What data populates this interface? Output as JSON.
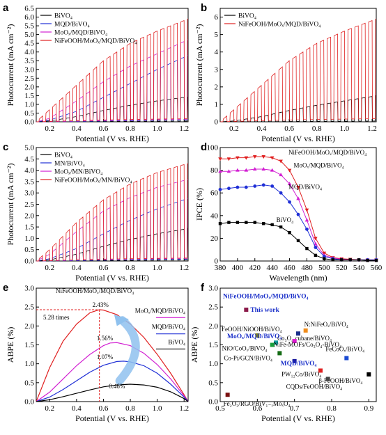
{
  "chart_data": [
    {
      "panel": "a",
      "type": "line",
      "xlabel": "Potential (V vs. RHE)",
      "ylabel": "Photocurrent (mA cm⁻²)",
      "xlim": [
        0.1,
        1.23
      ],
      "ylim": [
        0,
        6.5
      ],
      "xticks": [
        "0.2",
        "0.4",
        "0.6",
        "0.8",
        "1.0",
        "1.2"
      ],
      "yticks": [
        "0.0",
        "0.5",
        "1.0",
        "1.5",
        "2.0",
        "2.5",
        "3.0",
        "3.5",
        "4.0",
        "4.5",
        "5.0",
        "5.5",
        "6.0",
        "6.5"
      ],
      "chopped": true,
      "legend_position": "top-left",
      "series": [
        {
          "name": "BiVO₄",
          "color": "#000000",
          "x": [
            0.1,
            0.2,
            0.4,
            0.6,
            0.8,
            1.0,
            1.2,
            1.23
          ],
          "y": [
            0,
            0.05,
            0.3,
            0.65,
            0.95,
            1.2,
            1.4,
            1.42
          ]
        },
        {
          "name": "MQD/BiVO₄",
          "color": "#1f2fd6",
          "x": [
            0.1,
            0.2,
            0.4,
            0.6,
            0.8,
            1.0,
            1.2,
            1.23
          ],
          "y": [
            0,
            0.1,
            0.6,
            1.4,
            2.2,
            3.0,
            3.7,
            3.8
          ]
        },
        {
          "name": "MoOₓ/MQD/BiVO₄",
          "color": "#d21fd2",
          "x": [
            0.1,
            0.2,
            0.4,
            0.6,
            0.8,
            1.0,
            1.2,
            1.23
          ],
          "y": [
            0,
            0.2,
            1.2,
            2.3,
            3.2,
            3.9,
            4.6,
            4.7
          ]
        },
        {
          "name": "NiFeOOH/MoOₓ/MQD/BiVO₄",
          "color": "#e02020",
          "x": [
            0.1,
            0.2,
            0.4,
            0.6,
            0.8,
            1.0,
            1.2,
            1.23
          ],
          "y": [
            0,
            0.7,
            2.1,
            3.5,
            4.5,
            5.2,
            5.8,
            5.9
          ]
        }
      ]
    },
    {
      "panel": "b",
      "type": "line",
      "xlabel": "Potential (V vs. RHE)",
      "ylabel": "Photocurrent (mA cm⁻²)",
      "xlim": [
        0.1,
        1.23
      ],
      "ylim": [
        0,
        6.5
      ],
      "xticks": [
        "0.2",
        "0.4",
        "0.6",
        "0.8",
        "1.0",
        "1.2"
      ],
      "yticks": [
        "0",
        "1",
        "2",
        "3",
        "4",
        "5",
        "6"
      ],
      "chopped": true,
      "legend_position": "top-left",
      "series": [
        {
          "name": "BiVO₄",
          "color": "#000000",
          "x": [
            0.1,
            0.2,
            0.4,
            0.6,
            0.8,
            1.0,
            1.2,
            1.23
          ],
          "y": [
            0,
            0.05,
            0.3,
            0.65,
            0.95,
            1.2,
            1.45,
            1.5
          ]
        },
        {
          "name": "NiFeOOH/MoOₓ/MQD/BiVO₄",
          "color": "#e02020",
          "x": [
            0.1,
            0.2,
            0.4,
            0.6,
            0.8,
            1.0,
            1.2,
            1.23
          ],
          "y": [
            0,
            0.7,
            2.1,
            3.5,
            4.5,
            5.2,
            5.8,
            5.9
          ]
        }
      ]
    },
    {
      "panel": "c",
      "type": "line",
      "xlabel": "Potential (V vs. RHE)",
      "ylabel": "Photocurrent (mA cm⁻²)",
      "xlim": [
        0.1,
        1.23
      ],
      "ylim": [
        0,
        5.0
      ],
      "xticks": [
        "0.2",
        "0.4",
        "0.6",
        "0.8",
        "1.0",
        "1.2"
      ],
      "yticks": [
        "0.0",
        "0.5",
        "1.0",
        "1.5",
        "2.0",
        "2.5",
        "3.0",
        "3.5",
        "4.0",
        "4.5",
        "5.0"
      ],
      "chopped": true,
      "legend_position": "top-left",
      "series": [
        {
          "name": "BiVO₄",
          "color": "#000000",
          "x": [
            0.1,
            0.2,
            0.4,
            0.6,
            0.8,
            1.0,
            1.2,
            1.23
          ],
          "y": [
            0,
            0.05,
            0.3,
            0.65,
            0.95,
            1.2,
            1.4,
            1.45
          ]
        },
        {
          "name": "MN/BiVO₄",
          "color": "#1f2fd6",
          "x": [
            0.1,
            0.2,
            0.4,
            0.6,
            0.8,
            1.0,
            1.2,
            1.23
          ],
          "y": [
            0,
            0.1,
            0.55,
            1.2,
            1.8,
            2.3,
            2.7,
            2.75
          ]
        },
        {
          "name": "MoOₓ/MN/BiVO₄",
          "color": "#d21fd2",
          "x": [
            0.1,
            0.2,
            0.4,
            0.6,
            0.8,
            1.0,
            1.2,
            1.23
          ],
          "y": [
            0,
            0.3,
            1.3,
            2.2,
            2.8,
            3.25,
            3.55,
            3.6
          ]
        },
        {
          "name": "NiFeOOH/MoOₓ/MN/BiVO₄",
          "color": "#e02020",
          "x": [
            0.1,
            0.2,
            0.4,
            0.6,
            0.8,
            1.0,
            1.2,
            1.23
          ],
          "y": [
            0,
            0.5,
            1.7,
            2.7,
            3.4,
            3.9,
            4.25,
            4.3
          ]
        }
      ]
    },
    {
      "panel": "d",
      "type": "line",
      "xlabel": "Wavelength (nm)",
      "ylabel": "IPCE (%)",
      "xlim": [
        380,
        560
      ],
      "ylim": [
        0,
        100
      ],
      "xticks": [
        "380",
        "400",
        "420",
        "440",
        "460",
        "480",
        "500",
        "520",
        "540",
        "560"
      ],
      "yticks": [
        "0",
        "20",
        "40",
        "60",
        "80",
        "100"
      ],
      "x": [
        380,
        390,
        400,
        410,
        420,
        430,
        440,
        450,
        460,
        470,
        480,
        490,
        500,
        510,
        520,
        530,
        540,
        550,
        560
      ],
      "series": [
        {
          "name": "NiFeOOH/MoOₓ/MQD/BiVO₄",
          "color": "#e02020",
          "marker": "triangle-down",
          "y": [
            90,
            90,
            91,
            91,
            92,
            92,
            91,
            88,
            80,
            65,
            45,
            20,
            7,
            3,
            2,
            1.5,
            1,
            1,
            1
          ]
        },
        {
          "name": "MoOₓ/MQD/BiVO₄",
          "color": "#d21fd2",
          "marker": "triangle-up",
          "y": [
            79,
            79,
            80,
            80,
            81,
            81,
            80,
            76,
            68,
            55,
            36,
            15,
            5,
            2.5,
            1.5,
            1,
            1,
            1,
            1
          ]
        },
        {
          "name": "MQD/BiVO₄",
          "color": "#1f2fd6",
          "marker": "circle",
          "y": [
            63,
            64,
            65,
            65,
            66,
            67,
            66,
            60,
            52,
            41,
            28,
            12,
            4,
            2,
            1,
            1,
            1,
            1,
            1
          ]
        },
        {
          "name": "BiVO₄",
          "color": "#000000",
          "marker": "square",
          "y": [
            33,
            34,
            34,
            34,
            34,
            33,
            32,
            30,
            25,
            18,
            11,
            5,
            2,
            1,
            1,
            1,
            1,
            0.5,
            0.5
          ]
        }
      ]
    },
    {
      "panel": "e",
      "type": "line",
      "xlabel": "Potential (V vs. RHE)",
      "ylabel": "ABPE (%)",
      "xlim": [
        0.1,
        1.23
      ],
      "ylim": [
        0,
        3.0
      ],
      "xticks": [
        "0.2",
        "0.4",
        "0.6",
        "0.8",
        "1.0",
        "1.2"
      ],
      "yticks": [
        "0.0",
        "0.5",
        "1.0",
        "1.5",
        "2.0",
        "2.5",
        "3.0"
      ],
      "annotations": {
        "top_label": "NiFeOOH/MoOₓ/MQD/BiVO₄",
        "peak": "2.43%",
        "times": "5.28 times",
        "moox": "1.56%",
        "mqd": "1.07%",
        "bivo": "0.46%",
        "peak_x": 0.57,
        "peak_y": 2.43
      },
      "series": [
        {
          "name": "NiFeOOH/MoOₓ/MQD/BiVO₄",
          "color": "#e02020",
          "x": [
            0.1,
            0.2,
            0.3,
            0.4,
            0.5,
            0.57,
            0.6,
            0.7,
            0.8,
            0.9,
            1.0,
            1.1,
            1.2,
            1.23
          ],
          "y": [
            0,
            0.9,
            1.6,
            2.05,
            2.35,
            2.43,
            2.42,
            2.3,
            2.05,
            1.7,
            1.25,
            0.75,
            0.18,
            0
          ]
        },
        {
          "name": "MoOₓ/MQD/BiVO₄",
          "color": "#d21fd2",
          "x": [
            0.1,
            0.2,
            0.3,
            0.4,
            0.5,
            0.6,
            0.65,
            0.7,
            0.8,
            0.9,
            1.0,
            1.1,
            1.2,
            1.23
          ],
          "y": [
            0,
            0.25,
            0.6,
            0.95,
            1.25,
            1.48,
            1.55,
            1.56,
            1.48,
            1.28,
            0.98,
            0.6,
            0.15,
            0
          ]
        },
        {
          "name": "MQD/BiVO₄",
          "color": "#1f2fd6",
          "x": [
            0.1,
            0.2,
            0.3,
            0.4,
            0.5,
            0.6,
            0.7,
            0.75,
            0.8,
            0.9,
            1.0,
            1.1,
            1.2,
            1.23
          ],
          "y": [
            0,
            0.12,
            0.32,
            0.55,
            0.78,
            0.96,
            1.06,
            1.07,
            1.05,
            0.95,
            0.75,
            0.46,
            0.12,
            0
          ]
        },
        {
          "name": "BiVO₄",
          "color": "#000000",
          "x": [
            0.1,
            0.2,
            0.3,
            0.4,
            0.5,
            0.6,
            0.7,
            0.8,
            0.9,
            1.0,
            1.1,
            1.2,
            1.23
          ],
          "y": [
            0,
            0.05,
            0.13,
            0.22,
            0.31,
            0.39,
            0.44,
            0.46,
            0.44,
            0.38,
            0.26,
            0.08,
            0
          ]
        }
      ]
    },
    {
      "panel": "f",
      "type": "scatter",
      "xlabel": "Potential (V vs. RHE)",
      "ylabel": "ABPE (%)",
      "xlim": [
        0.5,
        0.92
      ],
      "ylim": [
        0,
        3.0
      ],
      "xticks": [
        "0.5",
        "0.6",
        "0.7",
        "0.8",
        "0.9"
      ],
      "yticks": [
        "0.0",
        "0.5",
        "1.0",
        "1.5",
        "2.0",
        "2.5",
        "3.0"
      ],
      "points": [
        {
          "label": "NiFeOOH/MoOₓ/MQD/BiVO₄",
          "note": "This work",
          "x": 0.57,
          "y": 2.43,
          "color": "#8b1a4a",
          "highlight": true
        },
        {
          "label": "FeOOH/NiOOH/BiVO₄",
          "x": 0.6,
          "y": 1.75,
          "color": "#8b8b00"
        },
        {
          "label": "N:NiFeOₓ/BiVO₄",
          "x": 0.73,
          "y": 1.88,
          "color": "#f08c1a"
        },
        {
          "label": "Co₃O₄ cubane/BiVO₄",
          "x": 0.71,
          "y": 1.8,
          "color": "#1a2f8b"
        },
        {
          "label": "MoOₓ/MQD/BiVO₄",
          "x": 0.65,
          "y": 1.56,
          "color": "#14a0a0",
          "highlight": true
        },
        {
          "label": "NiFe-MOFs/Co₃O₄-BiVO₄",
          "x": 0.7,
          "y": 1.6,
          "color": "#e01ad2"
        },
        {
          "label": "NiO/CoOₓ/BiVO₄",
          "x": 0.64,
          "y": 1.5,
          "color": "#1a9e3a"
        },
        {
          "label": "FeCoOₓ/BiVO₄",
          "x": 0.84,
          "y": 1.15,
          "color": "#1a4ad2"
        },
        {
          "label": "Co-Pi/GCN/BiVO₄",
          "x": 0.66,
          "y": 1.28,
          "color": "#136b13"
        },
        {
          "label": "MQD/BiVO₄",
          "x": 0.7,
          "y": 1.07,
          "color": "#1a1a9e",
          "highlight": true
        },
        {
          "label": "PW₁₂Co/BiVO₄",
          "x": 0.77,
          "y": 0.82,
          "color": "#e02020"
        },
        {
          "label": "β-FeOOH/BiVO₄",
          "x": 0.9,
          "y": 0.72,
          "color": "#000000"
        },
        {
          "label": "CQDs/FeOOH/BiVO₄",
          "x": 0.79,
          "y": 0.6,
          "color": "#444444"
        },
        {
          "label": "Fe₂O₃/RGO/BiV₁₋ₓMoₓO₄",
          "x": 0.52,
          "y": 0.18,
          "color": "#7a1010"
        }
      ]
    }
  ]
}
